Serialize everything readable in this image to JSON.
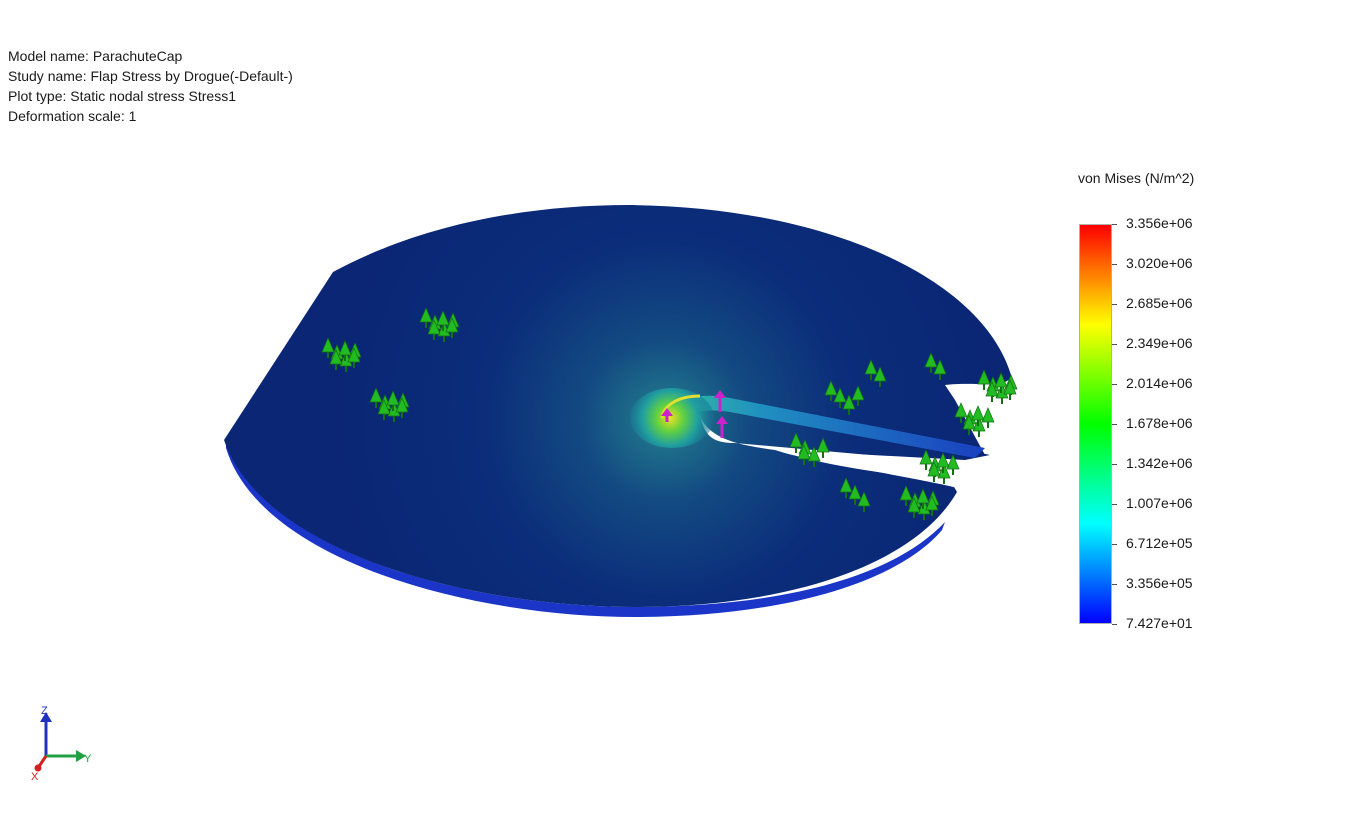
{
  "info": {
    "model_name": "Model name: ParachuteCap",
    "study_name": "Study name: Flap Stress by Drogue(-Default-)",
    "plot_type": "Plot type: Static nodal stress Stress1",
    "deformation_scale": "Deformation scale: 1"
  },
  "legend": {
    "title": "von Mises (N/m^2)",
    "ticks": [
      "3.356e+06",
      "3.020e+06",
      "2.685e+06",
      "2.349e+06",
      "2.014e+06",
      "1.678e+06",
      "1.342e+06",
      "1.007e+06",
      "6.712e+05",
      "3.356e+05",
      "7.427e+01"
    ],
    "colors": [
      "#ff0000",
      "#ff8000",
      "#ffff00",
      "#80ff00",
      "#00ff00",
      "#00ff80",
      "#00ffff",
      "#0080ff",
      "#0000ff"
    ]
  },
  "triad": {
    "z": "Z",
    "y": "Y",
    "x": "X"
  },
  "colors": {
    "model_face": "#0a2a78",
    "model_edge": "#1a35c8",
    "fixture": "#22bb22",
    "load_arrow": "#cc22cc"
  },
  "icons": {
    "fixture": "fixture-icon",
    "load": "load-arrow-icon",
    "triad": "coordinate-triad-icon"
  }
}
